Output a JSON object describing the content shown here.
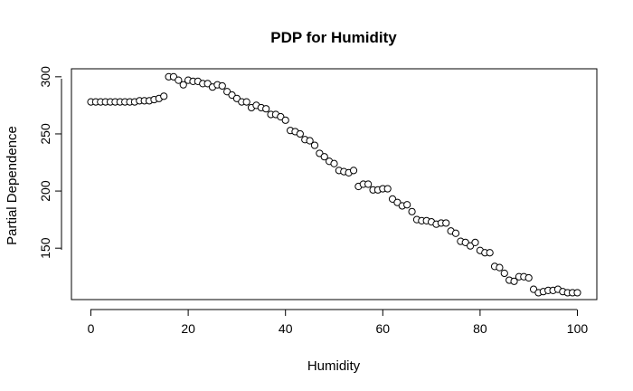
{
  "chart_data": {
    "type": "scatter",
    "title": "PDP for Humidity",
    "xlabel": "Humidity",
    "ylabel": "Partial Dependence",
    "xlim": [
      -4,
      104
    ],
    "ylim": [
      105,
      307
    ],
    "x_ticks": [
      0,
      20,
      40,
      60,
      80,
      100
    ],
    "y_ticks": [
      150,
      200,
      250,
      300
    ],
    "grid": false,
    "legend": "none",
    "marker": "open-circle",
    "x": [
      0,
      1,
      2,
      3,
      4,
      5,
      6,
      7,
      8,
      9,
      10,
      11,
      12,
      13,
      14,
      15,
      16,
      17,
      18,
      19,
      20,
      21,
      22,
      23,
      24,
      25,
      26,
      27,
      28,
      29,
      30,
      31,
      32,
      33,
      34,
      35,
      36,
      37,
      38,
      39,
      40,
      41,
      42,
      43,
      44,
      45,
      46,
      47,
      48,
      49,
      50,
      51,
      52,
      53,
      54,
      55,
      56,
      57,
      58,
      59,
      60,
      61,
      62,
      63,
      64,
      65,
      66,
      67,
      68,
      69,
      70,
      71,
      72,
      73,
      74,
      75,
      76,
      77,
      78,
      79,
      80,
      81,
      82,
      83,
      84,
      85,
      86,
      87,
      88,
      89,
      90,
      91,
      92,
      93,
      94,
      95,
      96,
      97,
      98,
      99,
      100
    ],
    "y": [
      278,
      278,
      278,
      278,
      278,
      278,
      278,
      278,
      278,
      278,
      279,
      279,
      279,
      280,
      281,
      283,
      300,
      300,
      297,
      293,
      297,
      296,
      296,
      294,
      294,
      291,
      293,
      292,
      287,
      284,
      281,
      278,
      278,
      273,
      275,
      273,
      272,
      267,
      267,
      265,
      262,
      253,
      252,
      250,
      245,
      244,
      240,
      233,
      230,
      226,
      224,
      218,
      217,
      216,
      218,
      204,
      206,
      206,
      201,
      201,
      202,
      202,
      193,
      190,
      187,
      188,
      182,
      175,
      174,
      174,
      173,
      171,
      172,
      172,
      165,
      163,
      156,
      155,
      152,
      155,
      148,
      146,
      146,
      134,
      133,
      128,
      122,
      121,
      125,
      125,
      124,
      114,
      111,
      112,
      113,
      113,
      114,
      112,
      111,
      111,
      111
    ]
  }
}
